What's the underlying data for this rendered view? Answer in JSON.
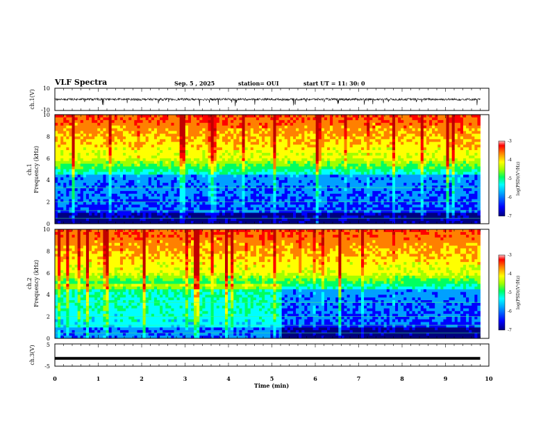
{
  "header": {
    "title": "VLF Spectra",
    "date": "Sep. 5 , 2025",
    "station": "station= OUI",
    "start_time": "start UT =  11: 30: 0"
  },
  "chart_data": [
    {
      "type": "line",
      "panel": "ch1-waveform",
      "ylabel": "ch.1(V)",
      "ylim": [
        -10,
        10
      ],
      "yticks": [
        "10",
        "-10"
      ],
      "xlim": [
        0,
        10
      ],
      "description_values": {
        "baseline": 0,
        "noise_amplitude": 2,
        "spike_min": -6
      }
    },
    {
      "type": "heatmap",
      "panel": "ch1-spectrogram",
      "ylabel_top": "ch.1",
      "ylabel": "Frequency (kHz)",
      "ylim": [
        0,
        10
      ],
      "yticks": [
        "0",
        "2",
        "4",
        "6",
        "8",
        "10"
      ],
      "xlim": [
        0,
        10
      ],
      "data_end_min": 9.8,
      "colorbar": {
        "label": "log(PSD)(V²/Hz)",
        "range": [
          -7,
          -3
        ],
        "ticks": [
          "-3",
          "-4",
          "-5",
          "-6",
          "-7"
        ]
      }
    },
    {
      "type": "heatmap",
      "panel": "ch2-spectrogram",
      "ylabel_top": "ch.2",
      "ylabel": "Frequency (kHz)",
      "ylim": [
        0,
        10
      ],
      "yticks": [
        "0",
        "2",
        "4",
        "6",
        "8",
        "10"
      ],
      "xlim": [
        0,
        10
      ],
      "data_end_min": 9.8,
      "colorbar": {
        "label": "log(PSD)(V²/Hz)",
        "range": [
          -7,
          -3
        ],
        "ticks": [
          "-3",
          "-4",
          "-5",
          "-6",
          "-7"
        ]
      }
    },
    {
      "type": "line",
      "panel": "ch3-waveform",
      "ylabel": "ch.3(V)",
      "ylim": [
        -5,
        5
      ],
      "yticks": [
        "5",
        "-5"
      ],
      "xlim": [
        0,
        10
      ],
      "values_constant": -1.5,
      "xlabel": "Time (min)",
      "xticks": [
        "0",
        "1",
        "2",
        "3",
        "4",
        "5",
        "6",
        "7",
        "8",
        "9",
        "10"
      ]
    }
  ],
  "colors": {
    "colormap": [
      "#000080",
      "#0000ff",
      "#00a0ff",
      "#00ffff",
      "#00ff60",
      "#a0ff00",
      "#ffff00",
      "#ff8000",
      "#ff0000",
      "#c00000"
    ]
  }
}
